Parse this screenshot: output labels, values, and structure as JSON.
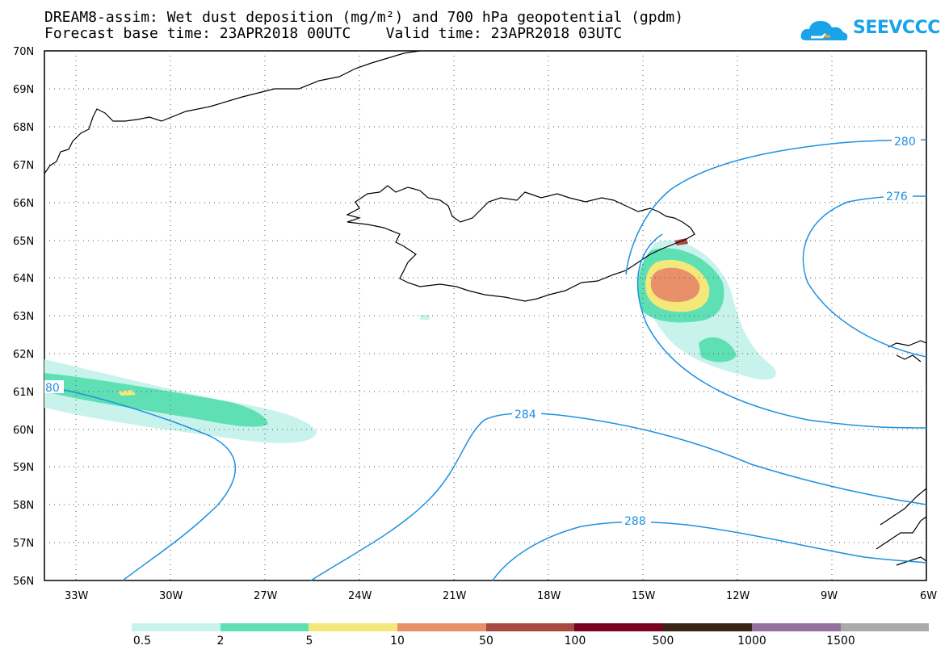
{
  "title_line1": "DREAM8-assim: Wet dust deposition (mg/m²) and 700 hPa geopotential (gpdm)",
  "title_line2": "Forecast base time: 23APR2018 00UTC    Valid time: 23APR2018 03UTC",
  "logo_text": "SEEVCCC",
  "logo_icon": "cloud-logo-icon",
  "lat_labels": [
    "70N",
    "69N",
    "68N",
    "67N",
    "66N",
    "65N",
    "64N",
    "63N",
    "62N",
    "61N",
    "60N",
    "59N",
    "58N",
    "57N",
    "56N"
  ],
  "lon_labels": [
    "33W",
    "30W",
    "27W",
    "24W",
    "21W",
    "18W",
    "15W",
    "12W",
    "9W",
    "6W"
  ],
  "contour_labels": [
    "280",
    "276",
    "284",
    "288",
    "80"
  ],
  "contour_color": "#1e90e0",
  "legend": {
    "colors": [
      "#c8f3ec",
      "#5ee0b4",
      "#f5e87a",
      "#e8906a",
      "#a84a42",
      "#7a0020",
      "#3a2418",
      "#94709e",
      "#aaaaaa"
    ],
    "labels": [
      "0.5",
      "2",
      "5",
      "10",
      "50",
      "100",
      "500",
      "1000",
      "1500"
    ]
  }
}
